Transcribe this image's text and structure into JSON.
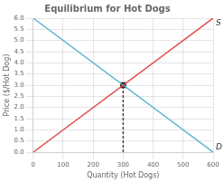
{
  "chart_data": {
    "type": "line",
    "title": "Equilibrium for Hot Dogs",
    "xlabel": "Quantity (Hot Dogs)",
    "ylabel": "Price ($/Hot Dog)",
    "xlim": [
      0,
      600
    ],
    "ylim": [
      0,
      6
    ],
    "xticks": [
      0,
      100,
      200,
      300,
      400,
      500,
      600
    ],
    "yticks": [
      {
        "value": 0.0,
        "label": "0.0"
      },
      0.5,
      {
        "value": 1.0,
        "label": "1.0"
      },
      1.5,
      {
        "value": 2.0,
        "label": "2.0"
      },
      2.5,
      {
        "value": 3.0,
        "label": "3.0"
      },
      3.5,
      {
        "value": 4.0,
        "label": "4.0"
      },
      4.5,
      {
        "value": 5.0,
        "label": "5.0"
      },
      5.5,
      {
        "value": 6.0,
        "label": "6.0"
      }
    ],
    "grid": true,
    "series": [
      {
        "color": "#e05050",
        "x": [
          0,
          600
        ],
        "values": [
          0,
          6
        ]
      },
      {
        "color": "#60b8d0",
        "x": [
          0,
          600
        ],
        "values": [
          6,
          0
        ]
      },
      {
        "color": "#444444",
        "line_style": "dashed",
        "x": [
          300,
          300
        ],
        "values": [
          0,
          3
        ]
      },
      {
        "type": "scatter",
        "color": "#111111",
        "marker": "square",
        "x": [
          300
        ],
        "values": [
          3
        ]
      }
    ],
    "annotations": [
      {
        "text": "S",
        "color": "#333333"
      },
      {
        "text": "D",
        "color": "#333333"
      }
    ]
  }
}
